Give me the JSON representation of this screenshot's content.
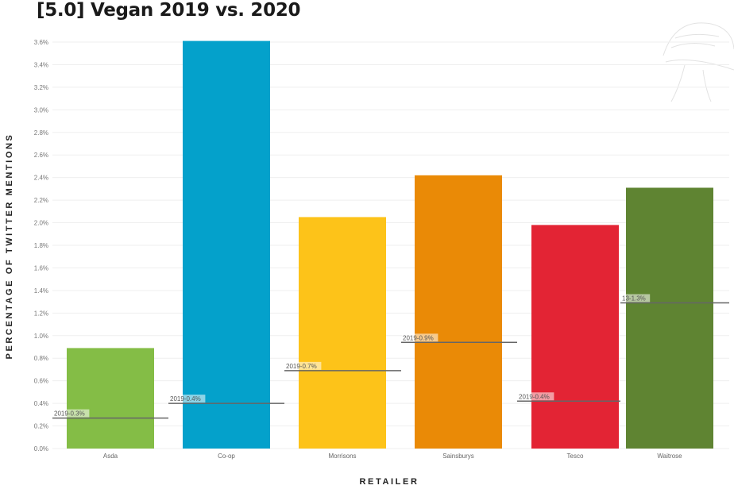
{
  "chart_data": {
    "type": "bar",
    "title": "[5.0] Vegan 2019 vs. 2020",
    "xlabel": "RETAILER",
    "ylabel": "PERCENTAGE OF TWITTER MENTIONS",
    "ylim": [
      0,
      3.6
    ],
    "y_ticks": [
      "0.0%",
      "0.2%",
      "0.4%",
      "0.6%",
      "0.8%",
      "1.0%",
      "1.2%",
      "1.4%",
      "1.6%",
      "1.8%",
      "2.0%",
      "2.2%",
      "2.4%",
      "2.6%",
      "2.8%",
      "3.0%",
      "3.2%",
      "3.4%",
      "3.6%"
    ],
    "grid": true,
    "categories": [
      "Asda",
      "Co-op",
      "Morrisons",
      "Sainsburys",
      "Tesco",
      "Waitrose"
    ],
    "series": [
      {
        "name": "2020",
        "values": [
          0.89,
          3.61,
          2.05,
          2.42,
          1.98,
          2.31
        ]
      },
      {
        "name": "2019",
        "values": [
          0.27,
          0.4,
          0.69,
          0.94,
          0.42,
          1.29
        ]
      }
    ],
    "colors": [
      "#84bd46",
      "#04a1cb",
      "#fdc319",
      "#ea8a06",
      "#e32434",
      "#5f8432"
    ],
    "reference_labels": [
      "2019-0.3%",
      "2019-0.4%",
      "2019-0.7%",
      "2019-0.9%",
      "2019-0.4%",
      "13-1.3%"
    ]
  }
}
